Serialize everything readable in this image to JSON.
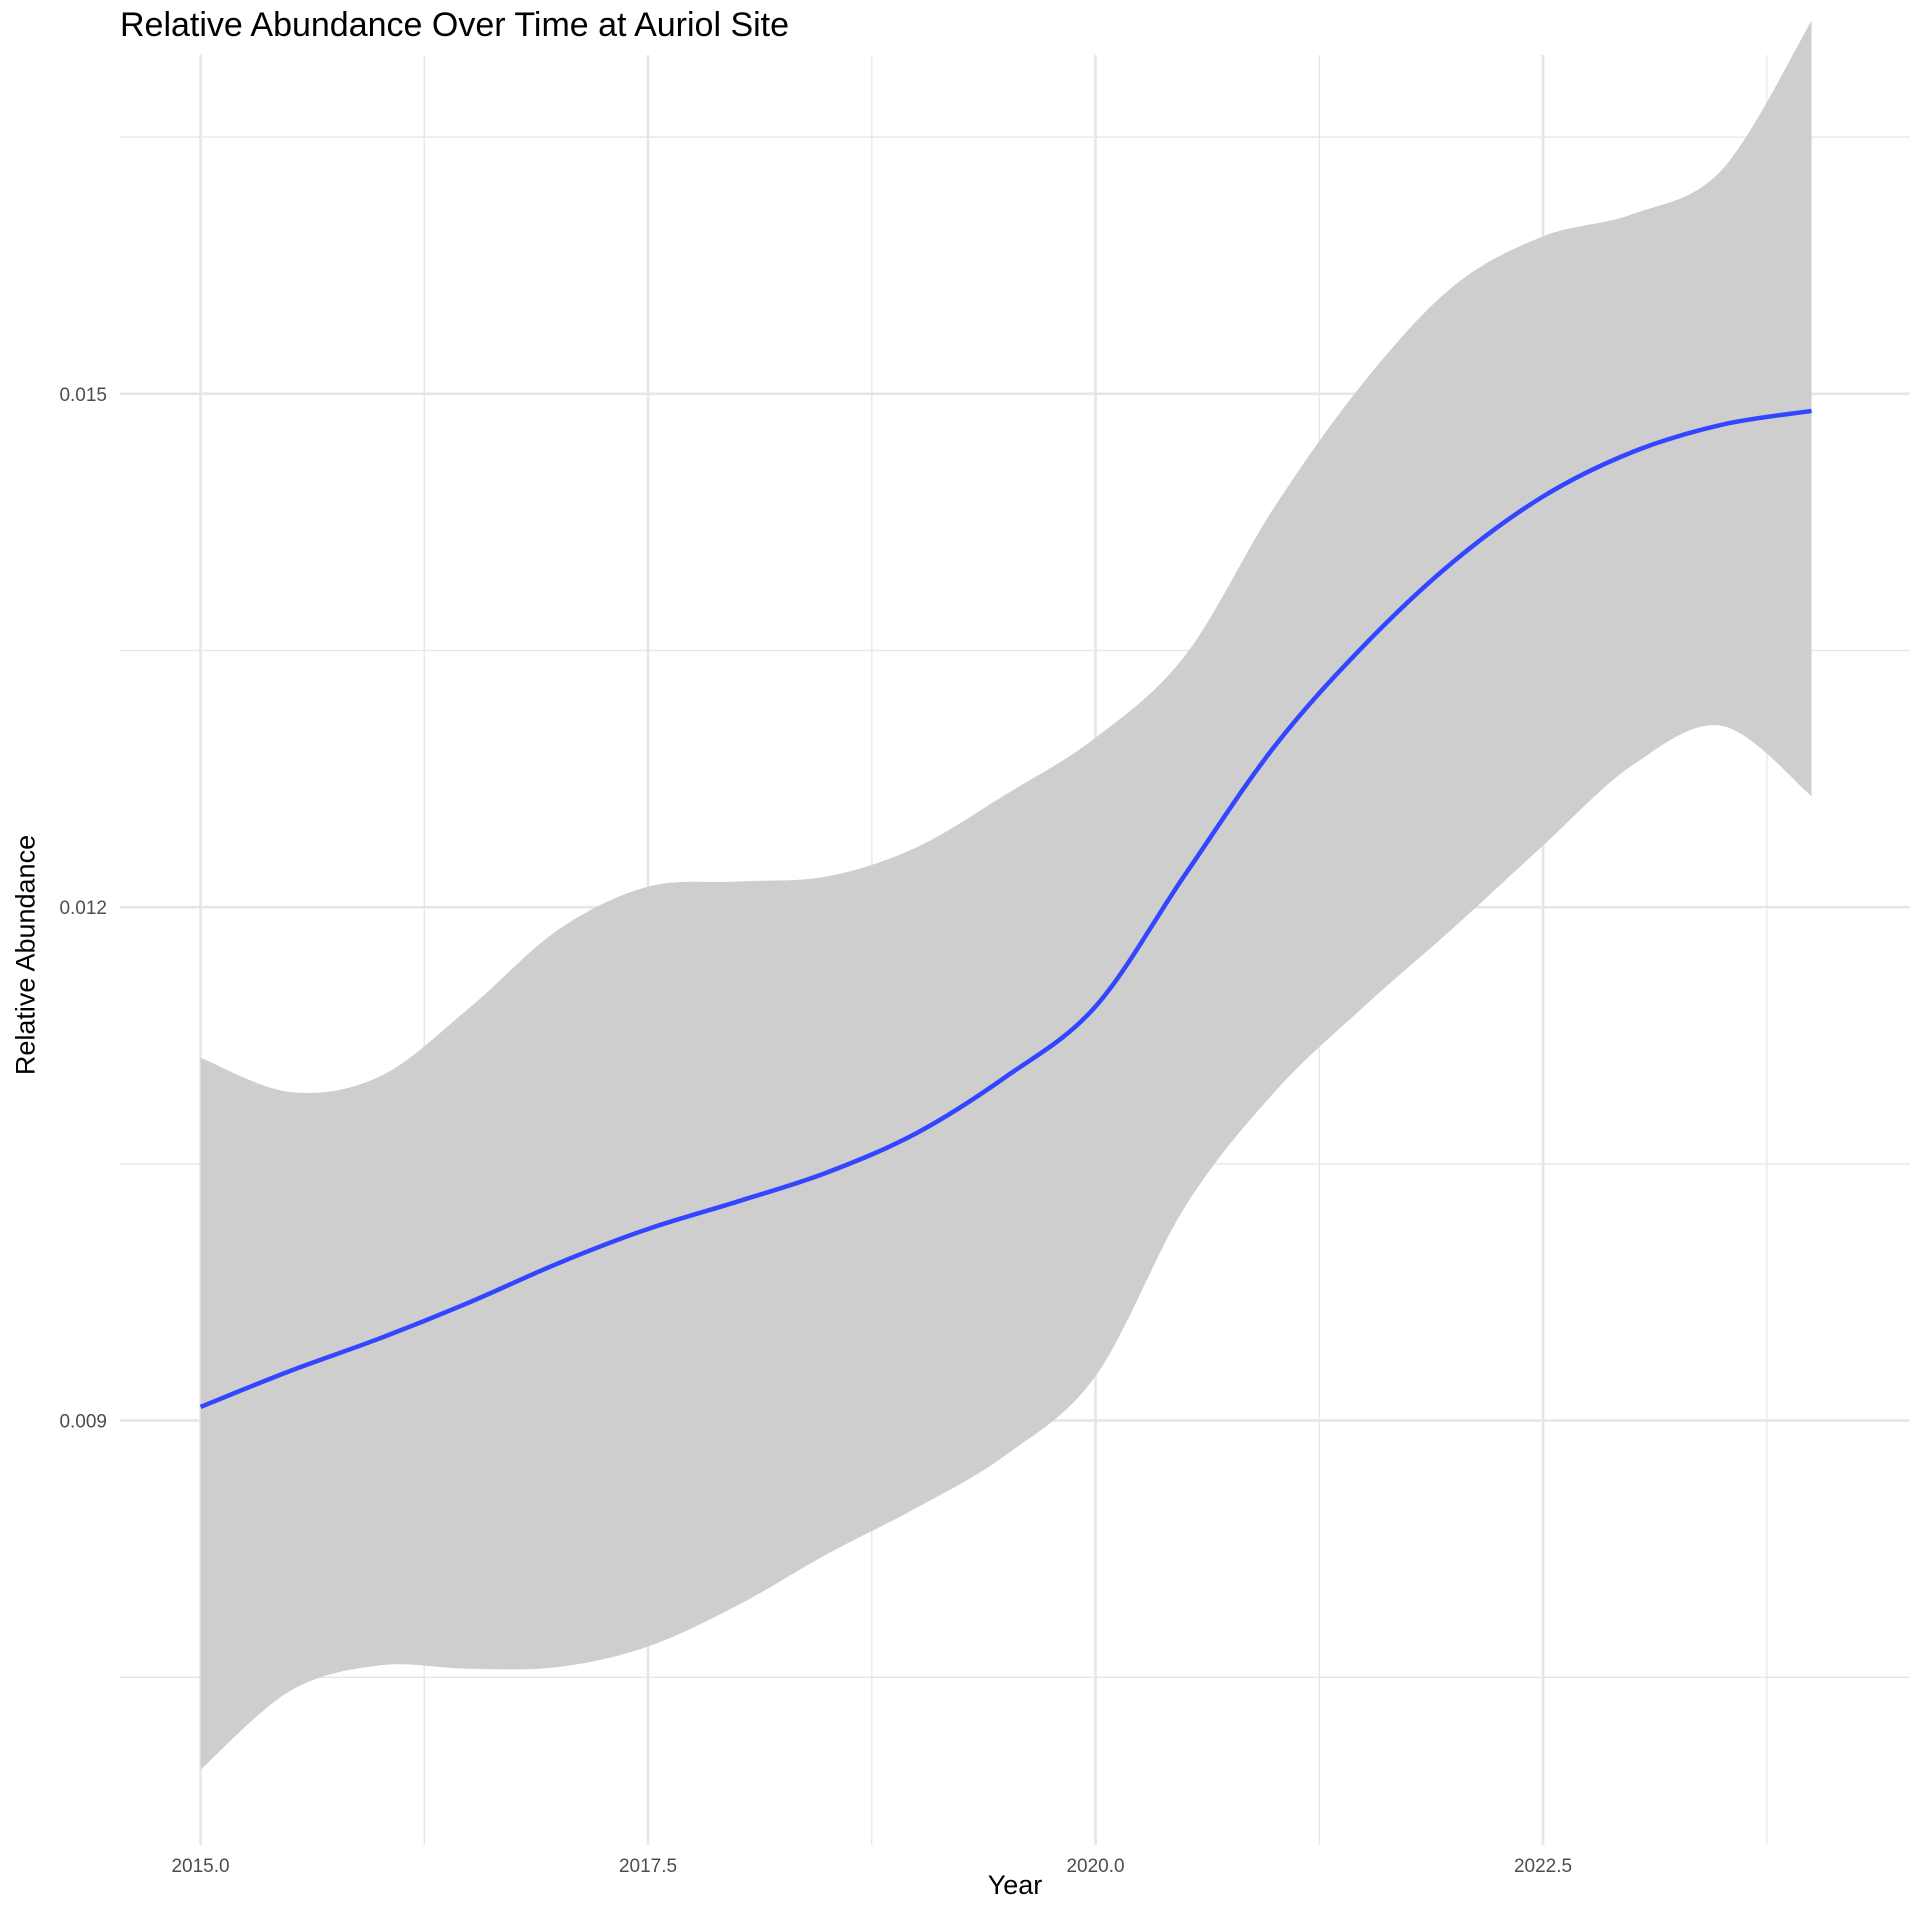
{
  "chart_data": {
    "type": "line",
    "title": "Relative Abundance Over Time at Auriol Site",
    "xlabel": "Year",
    "ylabel": "Relative Abundance",
    "xlim": [
      2014.55,
      2024.55
    ],
    "ylim": [
      0.00652,
      0.01698
    ],
    "x_ticks": [
      2015.0,
      2017.5,
      2020.0,
      2022.5
    ],
    "x_tick_labels": [
      "2015.0",
      "2017.5",
      "2020.0",
      "2022.5"
    ],
    "x_minor_ticks": [
      2016.25,
      2018.75,
      2021.25,
      2023.75
    ],
    "y_ticks": [
      0.009,
      0.012,
      0.015
    ],
    "y_tick_labels": [
      "0.009",
      "0.012",
      "0.015"
    ],
    "y_minor_ticks": [
      0.0075,
      0.0105,
      0.0135,
      0.0165
    ],
    "grid": true,
    "legend": "none",
    "colors": {
      "line": "#3346FF",
      "ribbon": "#CECECE",
      "grid": "#E6E6E6",
      "text": "#4D4D4D"
    },
    "series": [
      {
        "x": [
          2015.0,
          2015.5,
          2016.0,
          2016.5,
          2017.0,
          2017.5,
          2018.0,
          2018.5,
          2019.0,
          2019.5,
          2020.0,
          2020.5,
          2021.0,
          2021.5,
          2022.0,
          2022.5,
          2023.0,
          2023.5,
          2024.0
        ],
        "y": [
          0.00908,
          0.00929,
          0.00948,
          0.00969,
          0.00992,
          0.01012,
          0.01028,
          0.01045,
          0.01068,
          0.01101,
          0.01142,
          0.01219,
          0.01294,
          0.01353,
          0.01402,
          0.0144,
          0.01466,
          0.01482,
          0.0149
        ],
        "lower": [
          0.00696,
          0.00742,
          0.00757,
          0.00755,
          0.00756,
          0.00768,
          0.00792,
          0.00822,
          0.00849,
          0.0088,
          0.00926,
          0.01025,
          0.01092,
          0.01142,
          0.01188,
          0.01236,
          0.01283,
          0.01306,
          0.01265
        ],
        "upper": [
          0.01112,
          0.01092,
          0.01101,
          0.01141,
          0.01187,
          0.01212,
          0.01215,
          0.01218,
          0.01235,
          0.01266,
          0.01299,
          0.01347,
          0.01434,
          0.01507,
          0.01563,
          0.01592,
          0.01605,
          0.01631,
          0.01718
        ]
      }
    ]
  }
}
